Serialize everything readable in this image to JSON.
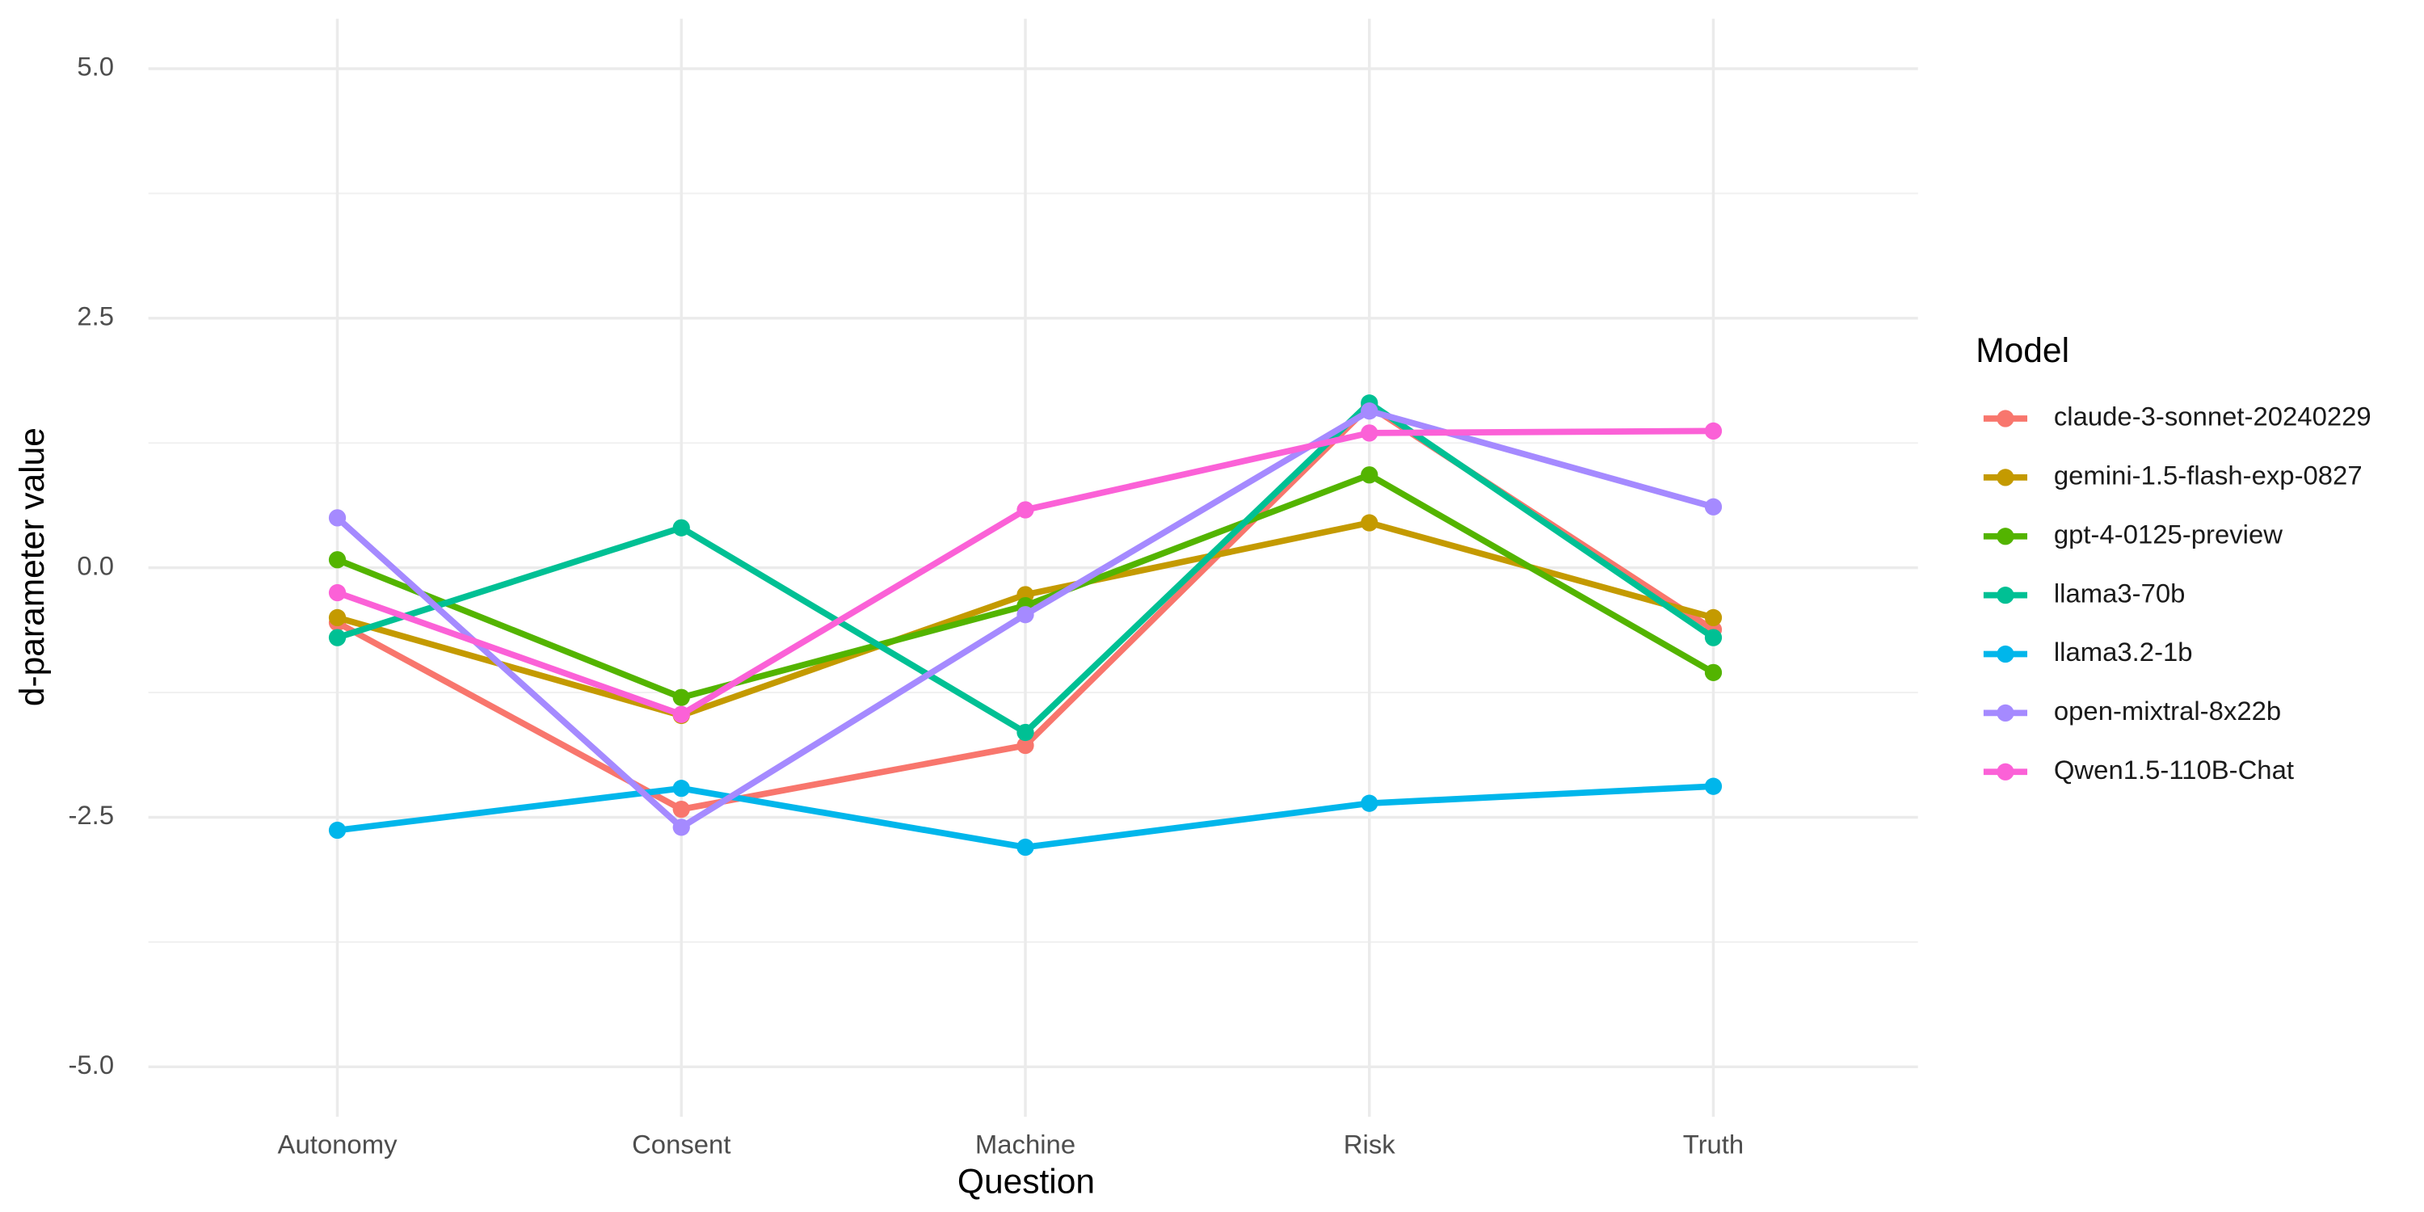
{
  "chart_data": {
    "type": "line",
    "x_label": "Question",
    "y_label": "d-parameter value",
    "legend_title": "Model",
    "categories": [
      "Autonomy",
      "Consent",
      "Machine",
      "Risk",
      "Truth"
    ],
    "ylim": [
      -5.5,
      5.5
    ],
    "yticks": [
      {
        "value": -5,
        "label": "-5.0"
      },
      {
        "value": -2.5,
        "label": "-2.5"
      },
      {
        "value": 0,
        "label": "0.0"
      },
      {
        "value": 2.5,
        "label": "2.5"
      },
      {
        "value": 5,
        "label": "5.0"
      }
    ],
    "minor_yticks": [
      -3.75,
      -1.25,
      1.25,
      3.75
    ],
    "grid": true,
    "legend": "right",
    "series": [
      {
        "name": "claude-3-sonnet-20240229",
        "color": "#F8766D",
        "values": [
          -0.55,
          -2.42,
          -1.78,
          1.62,
          -0.62
        ]
      },
      {
        "name": "gemini-1.5-flash-exp-0827",
        "color": "#C49A00",
        "values": [
          -0.5,
          -1.48,
          -0.27,
          0.45,
          -0.5
        ]
      },
      {
        "name": "gpt-4-0125-preview",
        "color": "#53B400",
        "values": [
          0.08,
          -1.3,
          -0.38,
          0.93,
          -1.05
        ]
      },
      {
        "name": "llama3-70b",
        "color": "#00C094",
        "values": [
          -0.7,
          0.4,
          -1.65,
          1.65,
          -0.7
        ]
      },
      {
        "name": "llama3.2-1b",
        "color": "#00B6EB",
        "values": [
          -2.63,
          -2.21,
          -2.8,
          -2.36,
          -2.19
        ]
      },
      {
        "name": "open-mixtral-8x22b",
        "color": "#A58AFF",
        "values": [
          0.5,
          -2.6,
          -0.47,
          1.57,
          0.61
        ]
      },
      {
        "name": "Qwen1.5-110B-Chat",
        "color": "#FB61D7",
        "values": [
          -0.25,
          -1.47,
          0.58,
          1.35,
          1.37
        ]
      }
    ]
  }
}
